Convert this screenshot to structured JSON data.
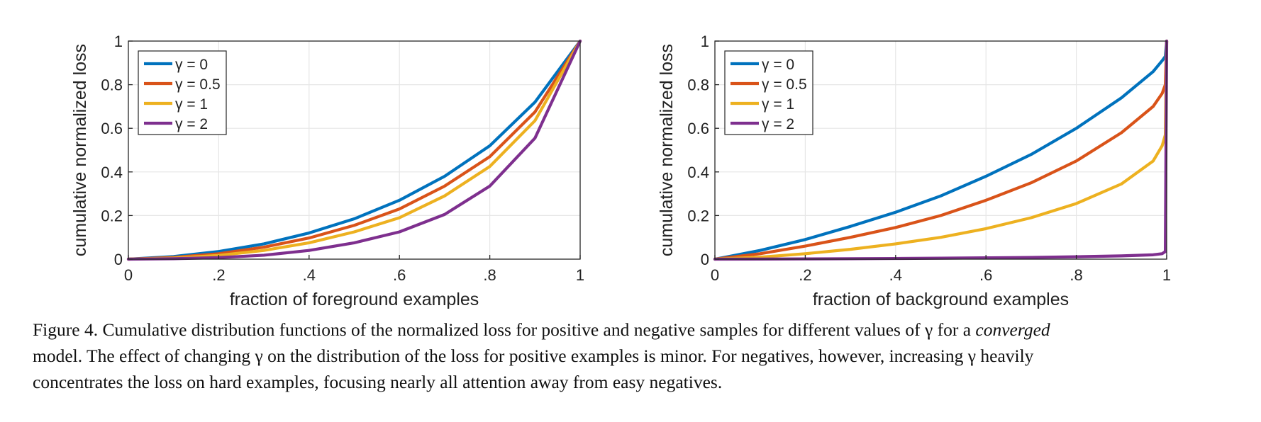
{
  "chart_data": [
    {
      "type": "line",
      "title": "",
      "xlabel": "fraction of foreground examples",
      "ylabel": "cumulative normalized loss",
      "xlim": [
        0,
        1
      ],
      "ylim": [
        0,
        1
      ],
      "xticks": [
        "0",
        ".2",
        ".4",
        ".6",
        ".8",
        "1"
      ],
      "yticks": [
        "0",
        "0.2",
        "0.4",
        "0.6",
        "0.8",
        "1"
      ],
      "grid": true,
      "legend_position": "top-left",
      "x": [
        0,
        0.1,
        0.2,
        0.3,
        0.4,
        0.5,
        0.6,
        0.7,
        0.8,
        0.9,
        1.0
      ],
      "series": [
        {
          "name": "γ = 0",
          "color": "#0072BD",
          "values": [
            0,
            0.012,
            0.035,
            0.07,
            0.12,
            0.185,
            0.27,
            0.38,
            0.52,
            0.72,
            1.0
          ]
        },
        {
          "name": "γ = 0.5",
          "color": "#D95319",
          "values": [
            0,
            0.008,
            0.025,
            0.055,
            0.097,
            0.155,
            0.23,
            0.335,
            0.47,
            0.675,
            1.0
          ]
        },
        {
          "name": "γ = 1",
          "color": "#EDB120",
          "values": [
            0,
            0.005,
            0.017,
            0.04,
            0.075,
            0.125,
            0.19,
            0.29,
            0.425,
            0.635,
            1.0
          ]
        },
        {
          "name": "γ = 2",
          "color": "#7E2F8E",
          "values": [
            0,
            0.002,
            0.007,
            0.018,
            0.04,
            0.075,
            0.125,
            0.205,
            0.335,
            0.555,
            1.0
          ]
        }
      ]
    },
    {
      "type": "line",
      "title": "",
      "xlabel": "fraction of background examples",
      "ylabel": "cumulative normalized loss",
      "xlim": [
        0,
        1
      ],
      "ylim": [
        0,
        1
      ],
      "xticks": [
        "0",
        ".2",
        ".4",
        ".6",
        ".8",
        "1"
      ],
      "yticks": [
        "0",
        "0.2",
        "0.4",
        "0.6",
        "0.8",
        "1"
      ],
      "grid": true,
      "legend_position": "top-left",
      "x": [
        0,
        0.1,
        0.2,
        0.3,
        0.4,
        0.5,
        0.6,
        0.7,
        0.8,
        0.9,
        0.97,
        0.99,
        0.997,
        1.0
      ],
      "series": [
        {
          "name": "γ = 0",
          "color": "#0072BD",
          "values": [
            0,
            0.04,
            0.09,
            0.15,
            0.215,
            0.29,
            0.38,
            0.48,
            0.6,
            0.74,
            0.86,
            0.91,
            0.93,
            1.0
          ]
        },
        {
          "name": "γ = 0.5",
          "color": "#D95319",
          "values": [
            0,
            0.025,
            0.06,
            0.1,
            0.145,
            0.2,
            0.27,
            0.35,
            0.45,
            0.58,
            0.7,
            0.76,
            0.8,
            1.0
          ]
        },
        {
          "name": "γ = 1",
          "color": "#EDB120",
          "values": [
            0,
            0.009,
            0.025,
            0.045,
            0.07,
            0.1,
            0.14,
            0.19,
            0.255,
            0.345,
            0.45,
            0.52,
            0.57,
            1.0
          ]
        },
        {
          "name": "γ = 2",
          "color": "#7E2F8E",
          "values": [
            0,
            0.0005,
            0.0012,
            0.002,
            0.003,
            0.0045,
            0.006,
            0.008,
            0.011,
            0.015,
            0.02,
            0.025,
            0.035,
            1.0
          ]
        }
      ]
    }
  ],
  "caption": {
    "line1_a": "Figure 4. Cumulative distribution functions of the normalized loss for positive and negative samples for different values of γ for a ",
    "line1_em": "converged",
    "line2": "model. The effect of changing γ on the distribution of the loss for positive examples is minor. For negatives, however, increasing γ heavily",
    "line3": "concentrates the loss on hard examples, focusing nearly all attention away from easy negatives."
  }
}
